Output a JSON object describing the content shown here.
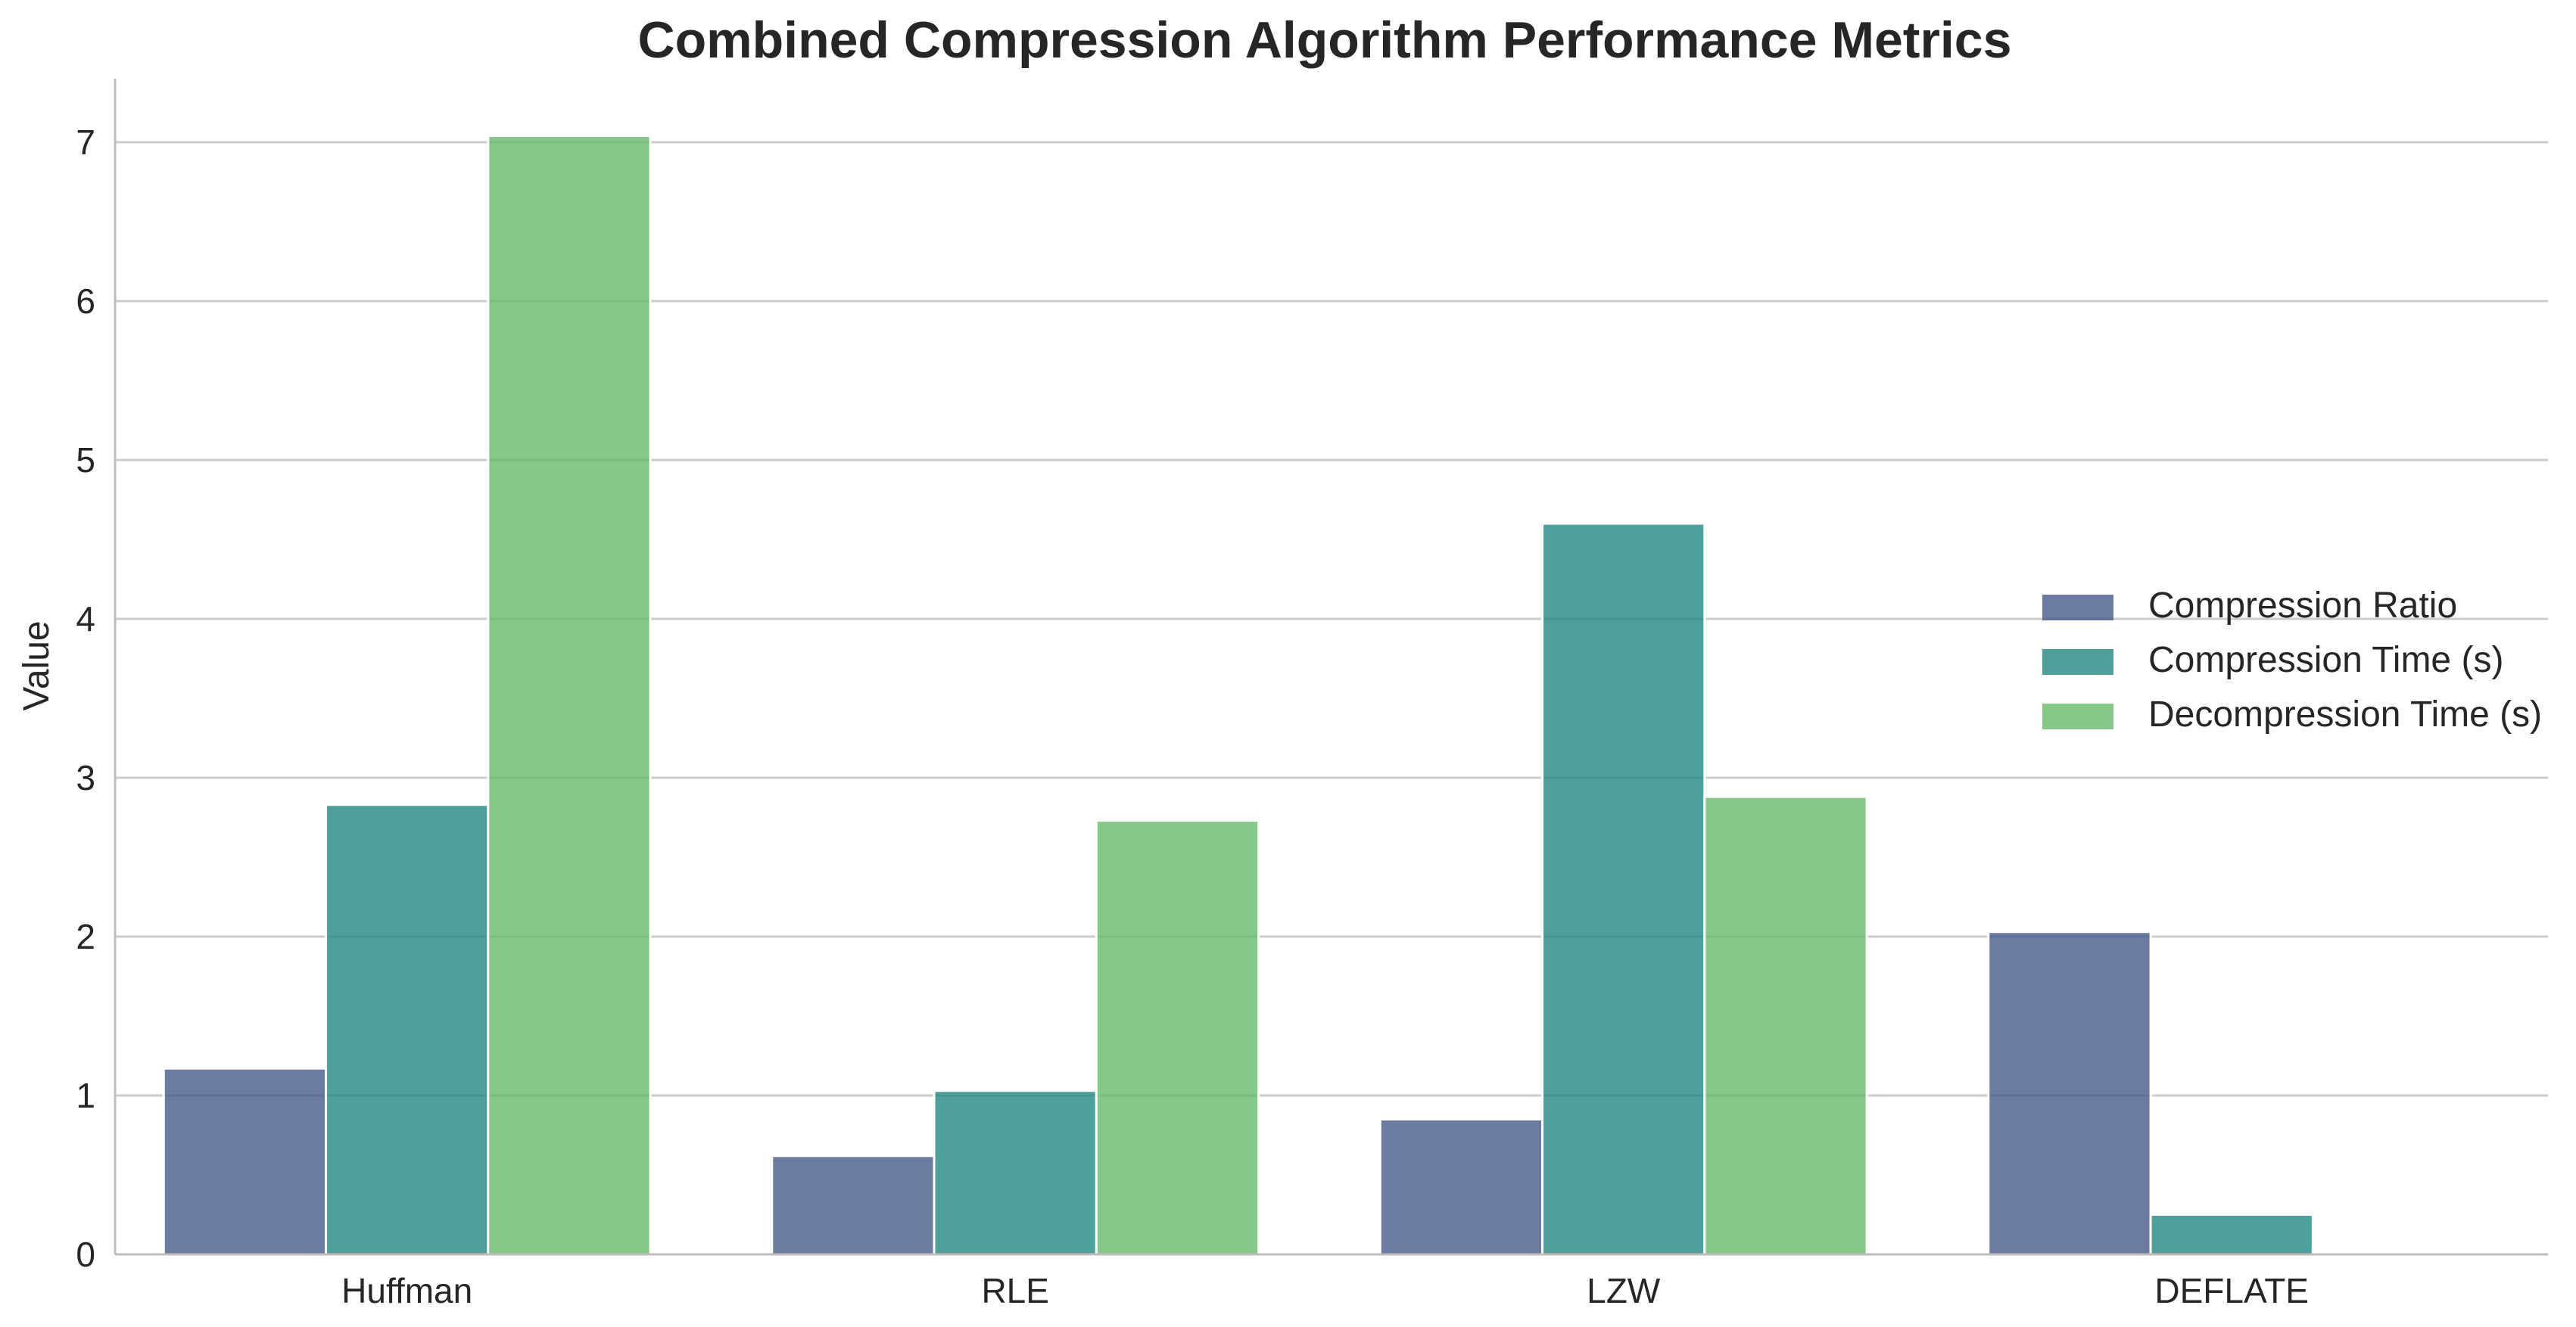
{
  "chart_data": {
    "type": "bar",
    "title": "Combined Compression Algorithm Performance Metrics",
    "xlabel": "",
    "ylabel": "Value",
    "categories": [
      "Huffman",
      "RLE",
      "LZW",
      "DEFLATE"
    ],
    "series": [
      {
        "name": "Compression Ratio",
        "color": "#475a89",
        "values": [
          1.17,
          0.62,
          0.85,
          2.03
        ]
      },
      {
        "name": "Compression Time (s)",
        "color": "#218a81",
        "values": [
          2.83,
          1.03,
          4.6,
          0.25
        ]
      },
      {
        "name": "Decompression Time (s)",
        "color": "#65bc6a",
        "values": [
          7.04,
          2.73,
          2.88,
          0.01
        ]
      }
    ],
    "ylim": [
      0,
      7.4
    ],
    "yticks": [
      0,
      1,
      2,
      3,
      4,
      5,
      6,
      7
    ],
    "grid": true,
    "legend_position": "center-right",
    "bar_opacity": 0.8
  }
}
